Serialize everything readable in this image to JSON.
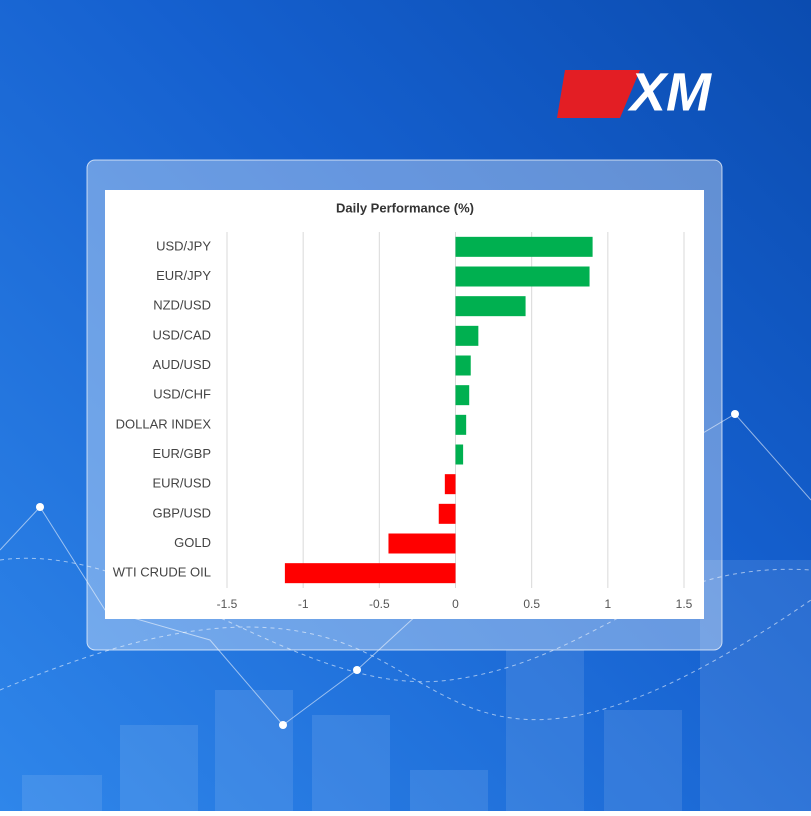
{
  "logo": "XM",
  "chart_data": {
    "type": "hbar",
    "title": "Daily Performance  (%)",
    "categories": [
      "USD/JPY",
      "EUR/JPY",
      "NZD/USD",
      "USD/CAD",
      "AUD/USD",
      "USD/CHF",
      "DOLLAR INDEX",
      "EUR/GBP",
      "EUR/USD",
      "GBP/USD",
      "GOLD",
      "WTI CRUDE OIL"
    ],
    "values": [
      0.9,
      0.88,
      0.46,
      0.15,
      0.1,
      0.09,
      0.07,
      0.05,
      -0.07,
      -0.11,
      -0.44,
      -1.12
    ],
    "positive_color": "#00b050",
    "negative_color": "#ff0000",
    "xlim": [
      -1.5,
      1.5
    ],
    "xticks": [
      -1.5,
      -1,
      -0.5,
      0,
      0.5,
      1,
      1.5
    ],
    "grid": true
  }
}
